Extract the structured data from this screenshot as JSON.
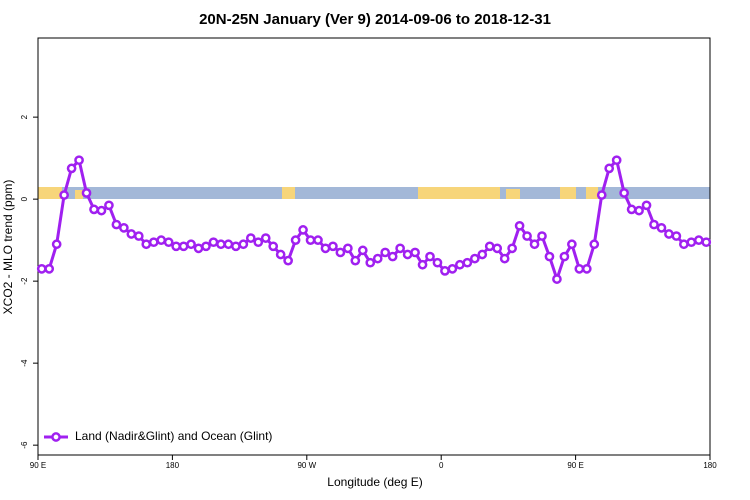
{
  "chart_data": {
    "type": "line",
    "title": "20N-25N January (Ver 9)   2014-09-06 to 2018-12-31",
    "x_label": "Longitude (deg E)",
    "y_label": "XCO2 - MLO trend (ppm)",
    "xlim": [
      90,
      540
    ],
    "xticks": [
      {
        "value": 90,
        "label": "90 E"
      },
      {
        "value": 180,
        "label": "180"
      },
      {
        "value": 270,
        "label": "90 W"
      },
      {
        "value": 360,
        "label": "0"
      },
      {
        "value": 450,
        "label": "90 E"
      },
      {
        "value": 540,
        "label": "180"
      }
    ],
    "ylim": [
      -6.24,
      3.93
    ],
    "yticks": [
      -6,
      -4,
      -2,
      0,
      2
    ],
    "legend": "bottom-left",
    "x": [
      92.5,
      97.5,
      102.5,
      107.5,
      112.5,
      117.5,
      122.5,
      127.5,
      132.5,
      137.5,
      142.5,
      147.5,
      152.5,
      157.5,
      162.5,
      167.5,
      172.5,
      177.5,
      182.5,
      187.5,
      192.5,
      197.5,
      202.5,
      207.5,
      212.5,
      217.5,
      222.5,
      227.5,
      232.5,
      237.5,
      242.5,
      247.5,
      252.5,
      257.5,
      262.5,
      267.5,
      272.5,
      277.5,
      282.5,
      287.5,
      292.5,
      297.5,
      302.5,
      307.5,
      312.5,
      317.5,
      322.5,
      327.5,
      332.5,
      337.5,
      342.5,
      347.5,
      352.5,
      357.5,
      362.5,
      367.5,
      372.5,
      377.5,
      382.5,
      387.5,
      392.5,
      397.5,
      402.5,
      407.5,
      412.5,
      417.5,
      422.5,
      427.5,
      432.5,
      437.5,
      442.5,
      447.5,
      452.5,
      457.5,
      462.5,
      467.5,
      472.5,
      477.5,
      482.5,
      487.5,
      492.5,
      497.5,
      502.5,
      507.5,
      512.5,
      517.5,
      522.5,
      527.5,
      532.5,
      537.5
    ],
    "series": [
      {
        "name": "Land (Nadir&Glint) and Ocean (Glint)",
        "color": "#a020f0",
        "values": [
          -1.7,
          -1.7,
          -1.1,
          0.1,
          0.75,
          0.95,
          0.15,
          -0.25,
          -0.28,
          -0.15,
          -0.62,
          -0.7,
          -0.85,
          -0.9,
          -1.1,
          -1.05,
          -1.0,
          -1.05,
          -1.15,
          -1.15,
          -1.1,
          -1.2,
          -1.15,
          -1.05,
          -1.1,
          -1.1,
          -1.15,
          -1.1,
          -0.95,
          -1.05,
          -0.95,
          -1.15,
          -1.35,
          -1.5,
          -1.0,
          -0.75,
          -1.0,
          -1.0,
          -1.2,
          -1.15,
          -1.3,
          -1.2,
          -1.5,
          -1.25,
          -1.55,
          -1.45,
          -1.3,
          -1.4,
          -1.2,
          -1.35,
          -1.3,
          -1.6,
          -1.4,
          -1.55,
          -1.75,
          -1.7,
          -1.6,
          -1.55,
          -1.45,
          -1.35,
          -1.15,
          -1.2,
          -1.45,
          -1.2,
          -0.65,
          -0.9,
          -1.1,
          -0.9,
          -1.4,
          -1.95,
          -1.4,
          -1.1,
          -1.7,
          -1.7,
          -1.1,
          0.1,
          0.75,
          0.95,
          0.15,
          -0.25,
          -0.28,
          -0.15,
          -0.62,
          -0.7,
          -0.85,
          -0.9,
          -1.1,
          -1.05,
          -1.0,
          -1.05
        ]
      }
    ]
  }
}
